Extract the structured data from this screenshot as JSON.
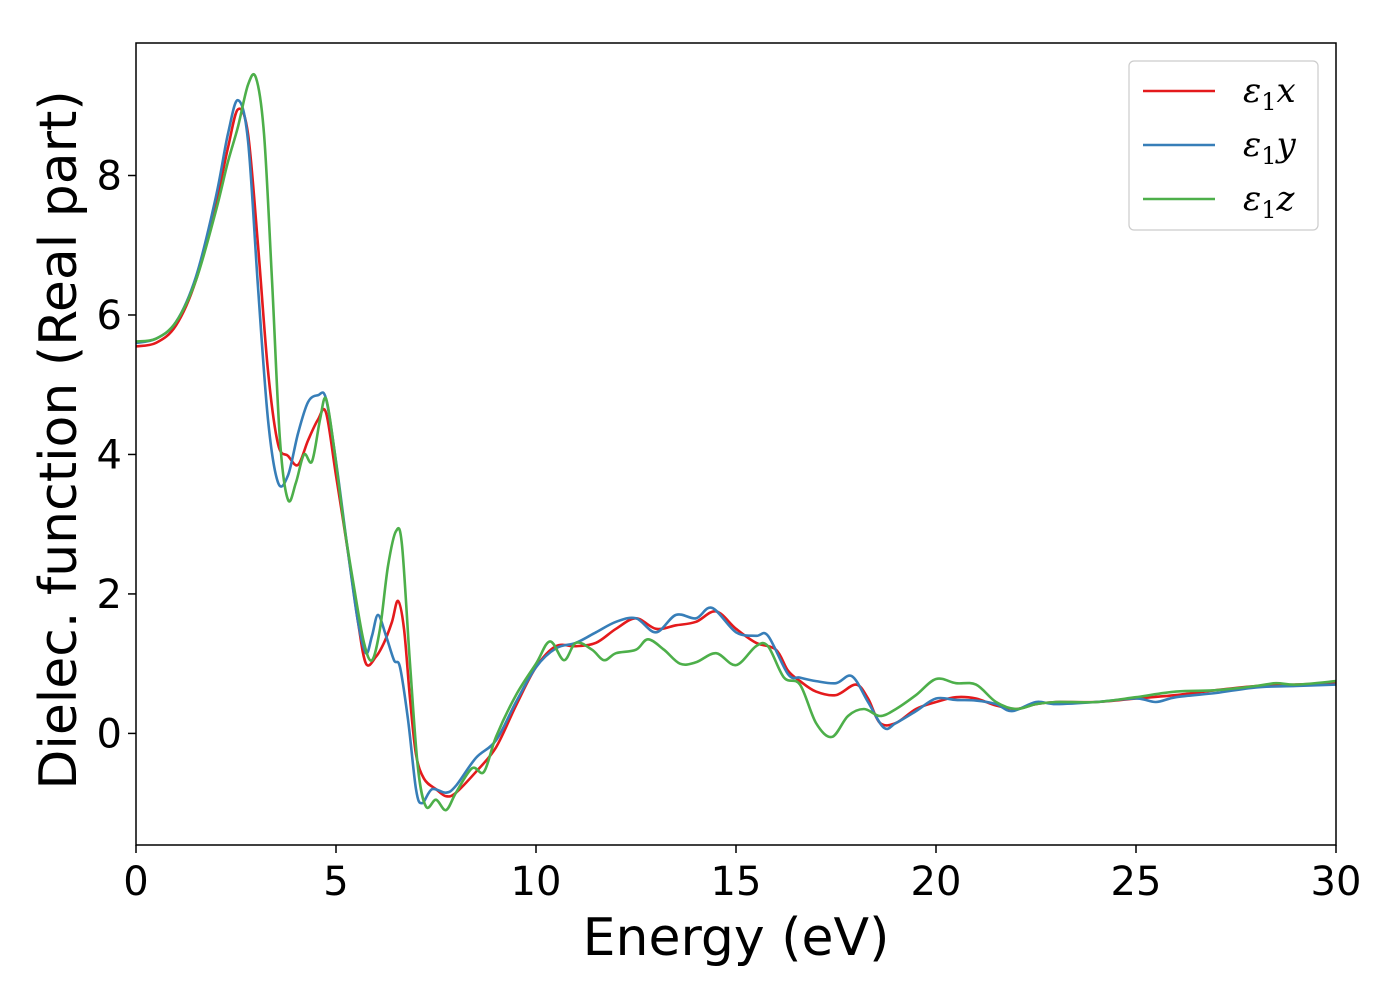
{
  "chart_data": {
    "type": "line",
    "xlabel": "Energy (eV)",
    "ylabel": "Dielec. function (Real part)",
    "xlim": [
      0,
      30
    ],
    "ylim": [
      -1.6,
      9.9
    ],
    "xticks": [
      0,
      5,
      10,
      15,
      20,
      25,
      30
    ],
    "yticks": [
      0,
      2,
      4,
      6,
      8
    ],
    "grid": false,
    "legend_position": "top-right",
    "series": [
      {
        "name": "ε1x",
        "color": "#e41a1c",
        "points": [
          [
            0,
            5.55
          ],
          [
            0.5,
            5.6
          ],
          [
            1,
            5.85
          ],
          [
            1.5,
            6.5
          ],
          [
            2,
            7.6
          ],
          [
            2.3,
            8.4
          ],
          [
            2.55,
            8.95
          ],
          [
            2.8,
            8.6
          ],
          [
            3.05,
            7.0
          ],
          [
            3.3,
            5.2
          ],
          [
            3.55,
            4.15
          ],
          [
            3.8,
            3.98
          ],
          [
            4.05,
            3.85
          ],
          [
            4.3,
            4.2
          ],
          [
            4.55,
            4.5
          ],
          [
            4.75,
            4.6
          ],
          [
            5.0,
            3.7
          ],
          [
            5.3,
            2.6
          ],
          [
            5.55,
            1.6
          ],
          [
            5.75,
            1.0
          ],
          [
            6.0,
            1.1
          ],
          [
            6.2,
            1.3
          ],
          [
            6.4,
            1.6
          ],
          [
            6.55,
            1.9
          ],
          [
            6.7,
            1.5
          ],
          [
            6.85,
            0.5
          ],
          [
            7.0,
            -0.3
          ],
          [
            7.2,
            -0.65
          ],
          [
            7.5,
            -0.8
          ],
          [
            7.75,
            -0.9
          ],
          [
            8.0,
            -0.85
          ],
          [
            8.5,
            -0.55
          ],
          [
            9.0,
            -0.2
          ],
          [
            9.5,
            0.4
          ],
          [
            10.0,
            0.95
          ],
          [
            10.5,
            1.25
          ],
          [
            11.0,
            1.25
          ],
          [
            11.5,
            1.3
          ],
          [
            12.0,
            1.5
          ],
          [
            12.5,
            1.65
          ],
          [
            13.0,
            1.5
          ],
          [
            13.5,
            1.55
          ],
          [
            14.0,
            1.6
          ],
          [
            14.5,
            1.75
          ],
          [
            15.0,
            1.5
          ],
          [
            15.5,
            1.3
          ],
          [
            16.0,
            1.2
          ],
          [
            16.3,
            0.9
          ],
          [
            16.6,
            0.75
          ],
          [
            17.0,
            0.6
          ],
          [
            17.5,
            0.55
          ],
          [
            18.0,
            0.7
          ],
          [
            18.3,
            0.5
          ],
          [
            18.6,
            0.15
          ],
          [
            19.0,
            0.15
          ],
          [
            19.5,
            0.35
          ],
          [
            20.0,
            0.45
          ],
          [
            20.5,
            0.52
          ],
          [
            21.0,
            0.5
          ],
          [
            21.5,
            0.4
          ],
          [
            22.0,
            0.35
          ],
          [
            22.5,
            0.42
          ],
          [
            23.0,
            0.45
          ],
          [
            24.0,
            0.45
          ],
          [
            25.0,
            0.5
          ],
          [
            26.0,
            0.55
          ],
          [
            27.0,
            0.62
          ],
          [
            28.0,
            0.68
          ],
          [
            29.0,
            0.7
          ],
          [
            30.0,
            0.72
          ]
        ]
      },
      {
        "name": "ε1y",
        "color": "#377eb8",
        "points": [
          [
            0,
            5.6
          ],
          [
            0.5,
            5.66
          ],
          [
            1,
            5.9
          ],
          [
            1.5,
            6.55
          ],
          [
            2,
            7.7
          ],
          [
            2.3,
            8.6
          ],
          [
            2.55,
            9.08
          ],
          [
            2.8,
            8.5
          ],
          [
            3.05,
            6.4
          ],
          [
            3.3,
            4.5
          ],
          [
            3.55,
            3.6
          ],
          [
            3.8,
            3.7
          ],
          [
            4.05,
            4.3
          ],
          [
            4.3,
            4.75
          ],
          [
            4.55,
            4.85
          ],
          [
            4.75,
            4.8
          ],
          [
            5.0,
            3.9
          ],
          [
            5.3,
            2.6
          ],
          [
            5.55,
            1.6
          ],
          [
            5.75,
            1.15
          ],
          [
            5.9,
            1.4
          ],
          [
            6.05,
            1.7
          ],
          [
            6.25,
            1.4
          ],
          [
            6.45,
            1.05
          ],
          [
            6.6,
            0.95
          ],
          [
            6.8,
            0.2
          ],
          [
            7.0,
            -0.8
          ],
          [
            7.15,
            -1.0
          ],
          [
            7.4,
            -0.8
          ],
          [
            7.75,
            -0.85
          ],
          [
            8.0,
            -0.75
          ],
          [
            8.5,
            -0.35
          ],
          [
            9.0,
            -0.1
          ],
          [
            9.5,
            0.45
          ],
          [
            10.0,
            0.95
          ],
          [
            10.5,
            1.22
          ],
          [
            11.0,
            1.3
          ],
          [
            11.5,
            1.45
          ],
          [
            12.0,
            1.6
          ],
          [
            12.5,
            1.65
          ],
          [
            13.0,
            1.45
          ],
          [
            13.5,
            1.7
          ],
          [
            14.0,
            1.65
          ],
          [
            14.4,
            1.8
          ],
          [
            15.0,
            1.45
          ],
          [
            15.5,
            1.4
          ],
          [
            15.8,
            1.4
          ],
          [
            16.3,
            0.85
          ],
          [
            16.6,
            0.8
          ],
          [
            17.0,
            0.75
          ],
          [
            17.5,
            0.72
          ],
          [
            17.9,
            0.82
          ],
          [
            18.3,
            0.45
          ],
          [
            18.7,
            0.08
          ],
          [
            19.0,
            0.15
          ],
          [
            19.5,
            0.32
          ],
          [
            20.0,
            0.5
          ],
          [
            20.5,
            0.48
          ],
          [
            21.0,
            0.47
          ],
          [
            21.5,
            0.42
          ],
          [
            21.9,
            0.32
          ],
          [
            22.5,
            0.45
          ],
          [
            23.0,
            0.42
          ],
          [
            24.0,
            0.45
          ],
          [
            25.0,
            0.5
          ],
          [
            25.5,
            0.45
          ],
          [
            26.0,
            0.52
          ],
          [
            27.0,
            0.58
          ],
          [
            28.0,
            0.66
          ],
          [
            29.0,
            0.68
          ],
          [
            30.0,
            0.7
          ]
        ]
      },
      {
        "name": "ε1z",
        "color": "#4daf4a",
        "points": [
          [
            0,
            5.62
          ],
          [
            0.5,
            5.66
          ],
          [
            1,
            5.9
          ],
          [
            1.5,
            6.5
          ],
          [
            2,
            7.5
          ],
          [
            2.3,
            8.2
          ],
          [
            2.55,
            8.7
          ],
          [
            2.8,
            9.3
          ],
          [
            3.0,
            9.4
          ],
          [
            3.2,
            8.6
          ],
          [
            3.4,
            6.5
          ],
          [
            3.6,
            4.2
          ],
          [
            3.8,
            3.35
          ],
          [
            4.0,
            3.6
          ],
          [
            4.2,
            4.0
          ],
          [
            4.4,
            3.9
          ],
          [
            4.6,
            4.5
          ],
          [
            4.75,
            4.8
          ],
          [
            4.95,
            4.1
          ],
          [
            5.2,
            3.0
          ],
          [
            5.45,
            2.1
          ],
          [
            5.7,
            1.3
          ],
          [
            5.9,
            1.05
          ],
          [
            6.1,
            1.5
          ],
          [
            6.3,
            2.4
          ],
          [
            6.5,
            2.9
          ],
          [
            6.65,
            2.7
          ],
          [
            6.85,
            1.0
          ],
          [
            7.05,
            -0.5
          ],
          [
            7.25,
            -1.05
          ],
          [
            7.5,
            -0.95
          ],
          [
            7.75,
            -1.1
          ],
          [
            8.0,
            -0.85
          ],
          [
            8.4,
            -0.5
          ],
          [
            8.7,
            -0.55
          ],
          [
            9.0,
            -0.05
          ],
          [
            9.5,
            0.55
          ],
          [
            10.0,
            1.0
          ],
          [
            10.35,
            1.32
          ],
          [
            10.7,
            1.05
          ],
          [
            11.0,
            1.3
          ],
          [
            11.4,
            1.2
          ],
          [
            11.7,
            1.05
          ],
          [
            12.0,
            1.15
          ],
          [
            12.5,
            1.2
          ],
          [
            12.8,
            1.35
          ],
          [
            13.2,
            1.2
          ],
          [
            13.6,
            1.0
          ],
          [
            14.0,
            1.02
          ],
          [
            14.5,
            1.15
          ],
          [
            15.0,
            0.98
          ],
          [
            15.5,
            1.25
          ],
          [
            15.8,
            1.25
          ],
          [
            16.2,
            0.8
          ],
          [
            16.6,
            0.7
          ],
          [
            17.0,
            0.15
          ],
          [
            17.4,
            -0.05
          ],
          [
            17.8,
            0.25
          ],
          [
            18.2,
            0.35
          ],
          [
            18.6,
            0.25
          ],
          [
            19.0,
            0.35
          ],
          [
            19.5,
            0.55
          ],
          [
            20.0,
            0.78
          ],
          [
            20.5,
            0.72
          ],
          [
            21.0,
            0.7
          ],
          [
            21.5,
            0.45
          ],
          [
            22.0,
            0.35
          ],
          [
            22.5,
            0.42
          ],
          [
            23.0,
            0.45
          ],
          [
            24.0,
            0.45
          ],
          [
            25.0,
            0.52
          ],
          [
            26.0,
            0.6
          ],
          [
            27.0,
            0.62
          ],
          [
            28.0,
            0.68
          ],
          [
            28.5,
            0.72
          ],
          [
            29.0,
            0.7
          ],
          [
            30.0,
            0.75
          ]
        ]
      }
    ]
  }
}
